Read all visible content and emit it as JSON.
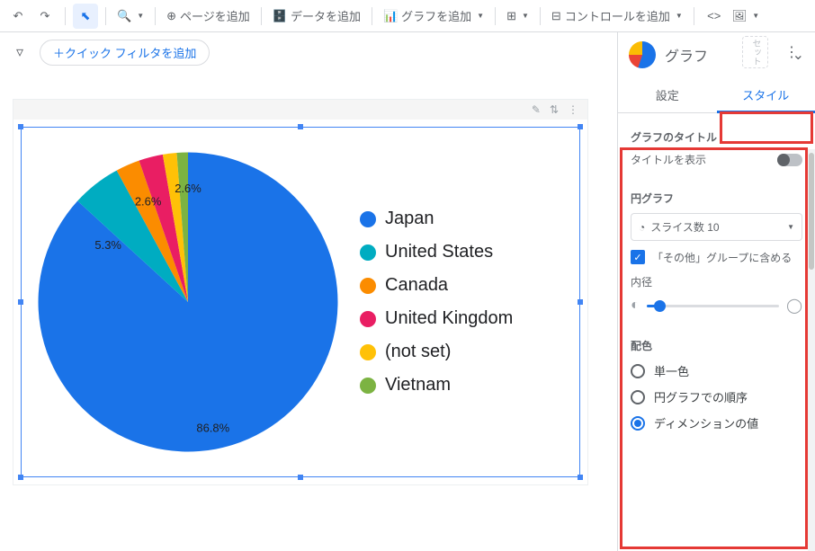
{
  "toolbar": {
    "add_page": "ページを追加",
    "add_data": "データを追加",
    "add_chart": "グラフを追加",
    "add_control": "コントロールを追加"
  },
  "filter": {
    "quick": "＋クイック フィルタを追加",
    "set_label": "セット"
  },
  "chart": {
    "type": "pie",
    "slices": [
      {
        "label": "Japan",
        "value": 86.8,
        "color": "#1a73e8"
      },
      {
        "label": "United States",
        "value": 5.3,
        "color": "#00acc1"
      },
      {
        "label": "Canada",
        "value": 2.6,
        "color": "#fb8c00"
      },
      {
        "label": "United Kingdom",
        "value": 2.6,
        "color": "#e91e63"
      },
      {
        "label": "(not set)",
        "value": 1.5,
        "color": "#ffc107"
      },
      {
        "label": "Vietnam",
        "value": 1.2,
        "color": "#7cb342"
      }
    ],
    "label_suffix": "%",
    "background": "#ffffff"
  },
  "panel": {
    "title": "グラフ",
    "tab_setup": "設定",
    "tab_style": "スタイル",
    "sec_title": "グラフのタイトル",
    "show_title": "タイトルを表示",
    "sec_pie": "円グラフ",
    "slice_count": "スライス数 10",
    "group_other": "「その他」グループに含める",
    "inner_radius": "内径",
    "sec_color": "配色",
    "color_single": "単一色",
    "color_order": "円グラフでの順序",
    "color_dim": "ディメンションの値"
  }
}
